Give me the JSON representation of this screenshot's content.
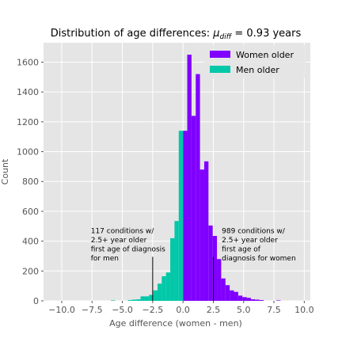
{
  "chart_data": {
    "type": "bar",
    "title_main": "Distribution of age differences: ",
    "title_mu": "μ",
    "title_sub": "diff",
    "title_value": " = 0.93 years",
    "xlabel": "Age difference (women - men)",
    "ylabel": "Count",
    "xlim": [
      -11.5,
      10.5
    ],
    "ylim": [
      0,
      1730
    ],
    "xticks": [
      -10.0,
      -7.5,
      -5.0,
      -2.5,
      0.0,
      2.5,
      5.0,
      7.5,
      10.0
    ],
    "xtick_labels": [
      "−10.0",
      "−7.5",
      "−5.0",
      "−2.5",
      "0.0",
      "2.5",
      "5.0",
      "7.5",
      "10.0"
    ],
    "yticks": [
      0,
      200,
      400,
      600,
      800,
      1000,
      1200,
      1400,
      1600
    ],
    "ytick_labels": [
      "0",
      "200",
      "400",
      "600",
      "800",
      "1000",
      "1200",
      "1400",
      "1600"
    ],
    "grid": true,
    "legend_position": "top-right",
    "bin_width": 0.35,
    "series": [
      {
        "name": "Women older",
        "color": "#8000ff",
        "bins": [
          {
            "x0": 0.0,
            "count": 1140
          },
          {
            "x0": 0.35,
            "count": 1650
          },
          {
            "x0": 0.7,
            "count": 1240
          },
          {
            "x0": 1.05,
            "count": 1520
          },
          {
            "x0": 1.4,
            "count": 880
          },
          {
            "x0": 1.75,
            "count": 935
          },
          {
            "x0": 2.1,
            "count": 505
          },
          {
            "x0": 2.45,
            "count": 435
          },
          {
            "x0": 2.8,
            "count": 280
          },
          {
            "x0": 3.15,
            "count": 150
          },
          {
            "x0": 3.5,
            "count": 105
          },
          {
            "x0": 3.85,
            "count": 70
          },
          {
            "x0": 4.2,
            "count": 60
          },
          {
            "x0": 4.55,
            "count": 35
          },
          {
            "x0": 4.9,
            "count": 25
          },
          {
            "x0": 5.25,
            "count": 20
          },
          {
            "x0": 5.6,
            "count": 10
          },
          {
            "x0": 5.95,
            "count": 8
          },
          {
            "x0": 6.3,
            "count": 5
          },
          {
            "x0": 7.7,
            "count": 3
          }
        ]
      },
      {
        "name": "Men older",
        "color": "#00c8a8",
        "bins": [
          {
            "x0": -0.35,
            "count": 1140
          },
          {
            "x0": -0.7,
            "count": 535
          },
          {
            "x0": -1.05,
            "count": 420
          },
          {
            "x0": -1.4,
            "count": 190
          },
          {
            "x0": -1.75,
            "count": 165
          },
          {
            "x0": -2.1,
            "count": 115
          },
          {
            "x0": -2.45,
            "count": 70
          },
          {
            "x0": -2.8,
            "count": 40
          },
          {
            "x0": -3.15,
            "count": 30
          },
          {
            "x0": -3.5,
            "count": 30
          },
          {
            "x0": -3.85,
            "count": 10
          },
          {
            "x0": -4.2,
            "count": 8
          },
          {
            "x0": -4.55,
            "count": 5
          },
          {
            "x0": -5.95,
            "count": 3
          }
        ]
      }
    ],
    "annotations": [
      {
        "lines": [
          "117 conditions w/",
          "2.5+ year older",
          "first age of diagnosis",
          "for men"
        ],
        "line_x": -2.5,
        "line_y_top": 295,
        "text_anchor_x": -7.6,
        "text_top_count": 455
      },
      {
        "lines": [
          "989 conditions w/",
          "2.5+ year older",
          "first age of",
          "diagnosis for women"
        ],
        "line_x": 2.5,
        "line_y_top": 295,
        "text_anchor_x": 3.2,
        "text_top_count": 455
      }
    ]
  }
}
